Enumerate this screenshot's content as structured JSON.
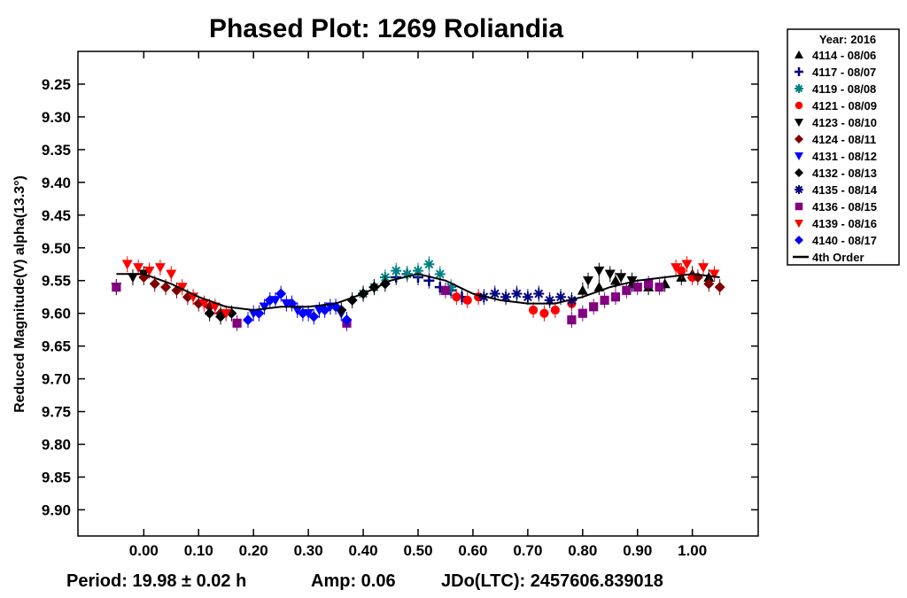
{
  "chart_data": {
    "type": "scatter",
    "title": "Phased Plot: 1269 Roliandia",
    "ylabel": "Reduced Magnitude(V) alpha(13.3°)",
    "xlabel": "",
    "xlim": [
      -0.12,
      1.12
    ],
    "ylim": [
      9.2,
      9.94
    ],
    "y_inverted": true,
    "xticks": [
      "0.00",
      "0.10",
      "0.20",
      "0.30",
      "0.40",
      "0.50",
      "0.60",
      "0.70",
      "0.80",
      "0.90",
      "1.00"
    ],
    "xtick_values": [
      0,
      0.1,
      0.2,
      0.3,
      0.4,
      0.5,
      0.6,
      0.7,
      0.8,
      0.9,
      1.0
    ],
    "yticks": [
      "9.25",
      "9.30",
      "9.35",
      "9.40",
      "9.45",
      "9.50",
      "9.55",
      "9.60",
      "9.65",
      "9.70",
      "9.75",
      "9.80",
      "9.85",
      "9.90"
    ],
    "ytick_values": [
      9.25,
      9.3,
      9.35,
      9.4,
      9.45,
      9.5,
      9.55,
      9.6,
      9.65,
      9.7,
      9.75,
      9.8,
      9.85,
      9.9
    ],
    "grid": false,
    "legend_position": "top-right outside",
    "legend_title": "Year: 2016",
    "series": [
      {
        "name": "4114 - 08/06",
        "color": "#000000",
        "marker": "triangle-up",
        "x": [
          0.8,
          0.83,
          0.86,
          0.89,
          0.92,
          0.95,
          0.98,
          1.0,
          1.03
        ],
        "y": [
          9.565,
          9.56,
          9.55,
          9.555,
          9.56,
          9.555,
          9.545,
          9.54,
          9.545
        ]
      },
      {
        "name": "4117 - 08/07",
        "color": "#000080",
        "marker": "plus",
        "x": [
          0.46,
          0.48,
          0.5,
          0.52,
          0.54,
          0.56,
          0.58
        ],
        "y": [
          9.545,
          9.54,
          9.545,
          9.55,
          9.56,
          9.565,
          9.575
        ]
      },
      {
        "name": "4119 - 08/08",
        "color": "#008080",
        "marker": "asterisk",
        "x": [
          0.4,
          0.42,
          0.44,
          0.46,
          0.48,
          0.5,
          0.52,
          0.54,
          0.56
        ],
        "y": [
          9.57,
          9.56,
          9.545,
          9.535,
          9.54,
          9.535,
          9.525,
          9.54,
          9.56
        ]
      },
      {
        "name": "4121 - 08/09",
        "color": "#ff0000",
        "marker": "circle",
        "x": [
          0.57,
          0.59,
          0.61,
          0.71,
          0.73,
          0.75,
          0.78,
          0.98,
          1.0
        ],
        "y": [
          9.575,
          9.58,
          9.575,
          9.595,
          9.6,
          9.595,
          9.585,
          9.535,
          9.545
        ]
      },
      {
        "name": "4123 - 08/10",
        "color": "#000000",
        "marker": "triangle-down",
        "x": [
          -0.05,
          -0.02,
          0.0,
          0.81,
          0.83,
          0.85,
          0.87,
          0.89
        ],
        "y": [
          9.56,
          9.545,
          9.54,
          9.55,
          9.535,
          9.54,
          9.545,
          9.55
        ]
      },
      {
        "name": "4124 - 08/11",
        "color": "#800000",
        "marker": "diamond",
        "x": [
          0.0,
          0.02,
          0.04,
          0.06,
          0.08,
          0.1,
          0.12,
          0.14,
          1.01,
          1.03,
          1.05
        ],
        "y": [
          9.545,
          9.555,
          9.56,
          9.565,
          9.575,
          9.585,
          9.59,
          9.6,
          9.545,
          9.555,
          9.56
        ]
      },
      {
        "name": "4131 - 08/12",
        "color": "#0000ff",
        "marker": "triangle-down",
        "x": [
          0.2,
          0.22,
          0.24,
          0.26,
          0.28,
          0.3,
          0.32,
          0.34,
          0.36
        ],
        "y": [
          9.6,
          9.59,
          9.58,
          9.585,
          9.595,
          9.6,
          9.595,
          9.59,
          9.6
        ]
      },
      {
        "name": "4132 - 08/13",
        "color": "#000000",
        "marker": "diamond",
        "x": [
          0.12,
          0.14,
          0.16,
          0.36,
          0.38,
          0.4,
          0.42,
          0.44
        ],
        "y": [
          9.6,
          9.605,
          9.6,
          9.595,
          9.58,
          9.57,
          9.56,
          9.555
        ]
      },
      {
        "name": "4135 - 08/14",
        "color": "#000080",
        "marker": "asterisk",
        "x": [
          0.62,
          0.64,
          0.66,
          0.68,
          0.7,
          0.72,
          0.74,
          0.76,
          0.78
        ],
        "y": [
          9.575,
          9.57,
          9.575,
          9.57,
          9.575,
          9.57,
          9.58,
          9.575,
          9.58
        ]
      },
      {
        "name": "4136 - 08/15",
        "color": "#800080",
        "marker": "square",
        "x": [
          0.78,
          0.8,
          0.82,
          0.84,
          0.86,
          0.88,
          0.9,
          0.92,
          0.94,
          -0.05,
          0.17,
          0.37,
          0.55
        ],
        "y": [
          9.61,
          9.6,
          9.59,
          9.58,
          9.575,
          9.565,
          9.56,
          9.555,
          9.56,
          9.56,
          9.615,
          9.615,
          9.565
        ]
      },
      {
        "name": "4139 - 08/16",
        "color": "#ff0000",
        "marker": "triangle-down",
        "x": [
          -0.03,
          -0.01,
          0.01,
          0.03,
          0.05,
          0.07,
          0.09,
          0.11,
          0.13,
          0.15,
          0.97,
          0.99,
          1.02,
          1.04
        ],
        "y": [
          9.525,
          9.53,
          9.535,
          9.53,
          9.54,
          9.56,
          9.575,
          9.585,
          9.59,
          9.6,
          9.53,
          9.525,
          9.53,
          9.54
        ]
      },
      {
        "name": "4140 - 08/17",
        "color": "#0000ff",
        "marker": "diamond",
        "x": [
          0.19,
          0.21,
          0.23,
          0.25,
          0.27,
          0.29,
          0.31,
          0.33,
          0.35,
          0.37
        ],
        "y": [
          9.61,
          9.6,
          9.58,
          9.57,
          9.585,
          9.6,
          9.605,
          9.595,
          9.59,
          9.61
        ]
      }
    ],
    "fit": {
      "name": "4th Order",
      "color": "#000000",
      "x": [
        -0.05,
        0.0,
        0.05,
        0.1,
        0.15,
        0.2,
        0.25,
        0.3,
        0.35,
        0.4,
        0.45,
        0.5,
        0.55,
        0.6,
        0.65,
        0.7,
        0.75,
        0.8,
        0.85,
        0.9,
        0.95,
        1.0,
        1.05
      ],
      "y": [
        9.54,
        9.54,
        9.555,
        9.575,
        9.59,
        9.595,
        9.59,
        9.59,
        9.585,
        9.57,
        9.55,
        9.54,
        9.55,
        9.57,
        9.58,
        9.585,
        9.585,
        9.575,
        9.56,
        9.55,
        9.545,
        9.54,
        9.545
      ]
    }
  },
  "footer": {
    "period": "Period: 19.98 ± 0.02 h",
    "amp": "Amp: 0.06",
    "jdo": "JDo(LTC): 2457606.839018"
  }
}
